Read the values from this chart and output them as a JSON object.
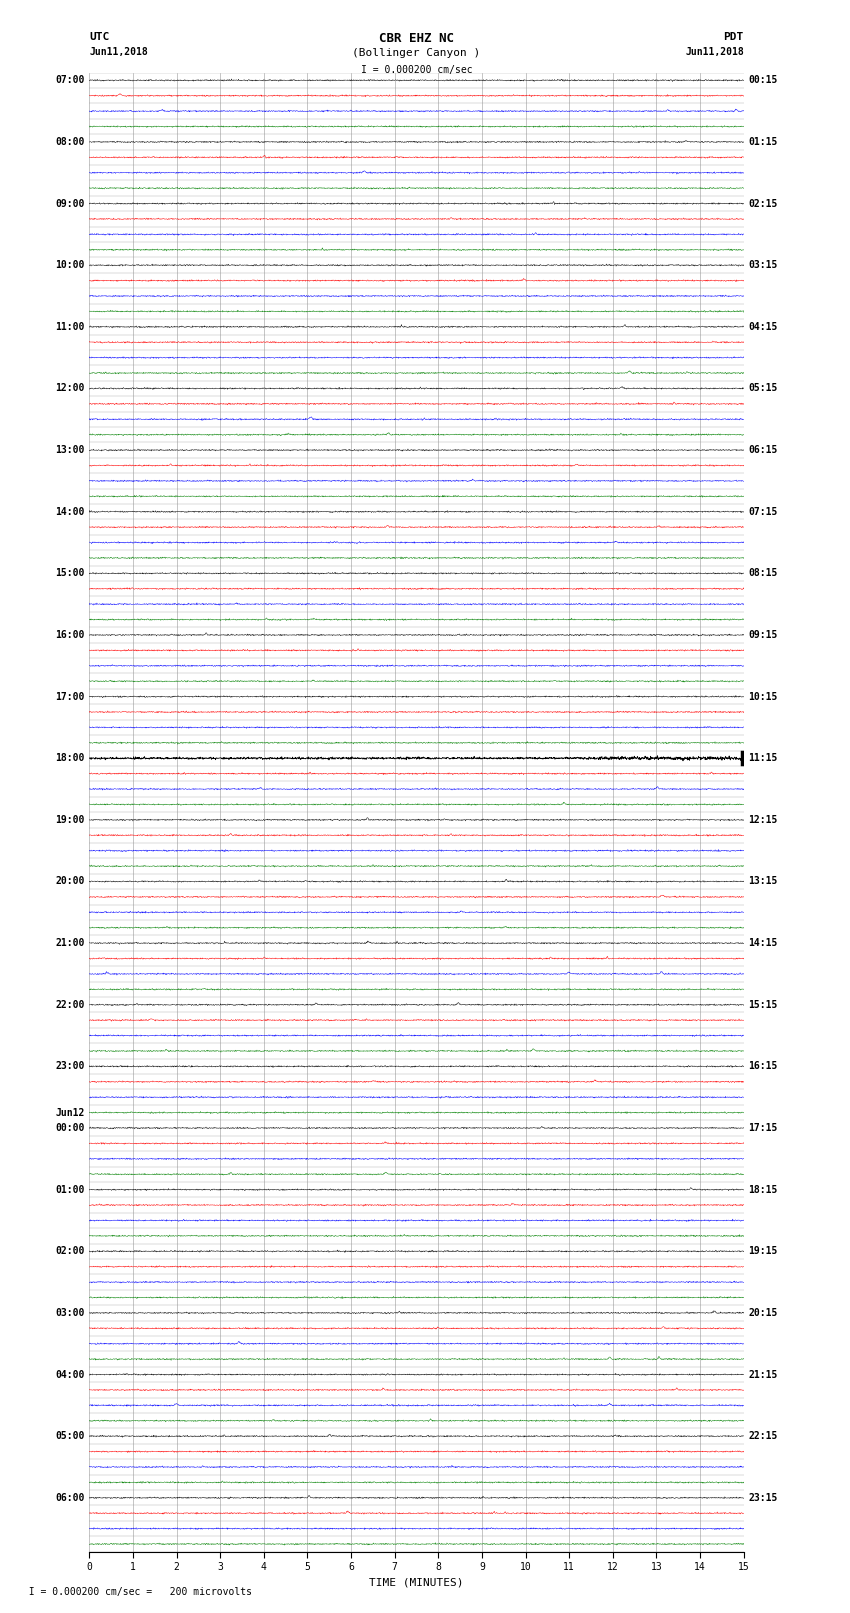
{
  "title_line1": "CBR EHZ NC",
  "title_line2": "(Bollinger Canyon )",
  "scale_text": "I = 0.000200 cm/sec",
  "utc_label": "UTC",
  "utc_date": "Jun11,2018",
  "pdt_label": "PDT",
  "pdt_date": "Jun11,2018",
  "footer_text": "  I = 0.000200 cm/sec =   200 microvolts",
  "xlabel": "TIME (MINUTES)",
  "left_labels": [
    [
      "07:00",
      0
    ],
    [
      "08:00",
      4
    ],
    [
      "09:00",
      8
    ],
    [
      "10:00",
      12
    ],
    [
      "11:00",
      16
    ],
    [
      "12:00",
      20
    ],
    [
      "13:00",
      24
    ],
    [
      "14:00",
      28
    ],
    [
      "15:00",
      32
    ],
    [
      "16:00",
      36
    ],
    [
      "17:00",
      40
    ],
    [
      "18:00",
      44
    ],
    [
      "19:00",
      48
    ],
    [
      "20:00",
      52
    ],
    [
      "21:00",
      56
    ],
    [
      "22:00",
      60
    ],
    [
      "23:00",
      64
    ],
    [
      "Jun12",
      67
    ],
    [
      "00:00",
      68
    ],
    [
      "01:00",
      72
    ],
    [
      "02:00",
      76
    ],
    [
      "03:00",
      80
    ],
    [
      "04:00",
      84
    ],
    [
      "05:00",
      88
    ],
    [
      "06:00",
      92
    ]
  ],
  "right_labels": [
    [
      "00:15",
      0
    ],
    [
      "01:15",
      4
    ],
    [
      "02:15",
      8
    ],
    [
      "03:15",
      12
    ],
    [
      "04:15",
      16
    ],
    [
      "05:15",
      20
    ],
    [
      "06:15",
      24
    ],
    [
      "07:15",
      28
    ],
    [
      "08:15",
      32
    ],
    [
      "09:15",
      36
    ],
    [
      "10:15",
      40
    ],
    [
      "11:15",
      44
    ],
    [
      "12:15",
      48
    ],
    [
      "13:15",
      52
    ],
    [
      "14:15",
      56
    ],
    [
      "15:15",
      60
    ],
    [
      "16:15",
      64
    ],
    [
      "17:15",
      68
    ],
    [
      "18:15",
      72
    ],
    [
      "19:15",
      76
    ],
    [
      "20:15",
      80
    ],
    [
      "21:15",
      84
    ],
    [
      "22:15",
      88
    ],
    [
      "23:15",
      92
    ]
  ],
  "colors_cycle": [
    "black",
    "red",
    "blue",
    "green"
  ],
  "n_rows": 96,
  "n_minutes": 15,
  "background_color": "white",
  "grid_color": "#999999",
  "noise_scale": 0.055,
  "title_fontsize": 9,
  "label_fontsize": 7,
  "tick_fontsize": 7,
  "special_row": 44,
  "jun12_row": 67
}
